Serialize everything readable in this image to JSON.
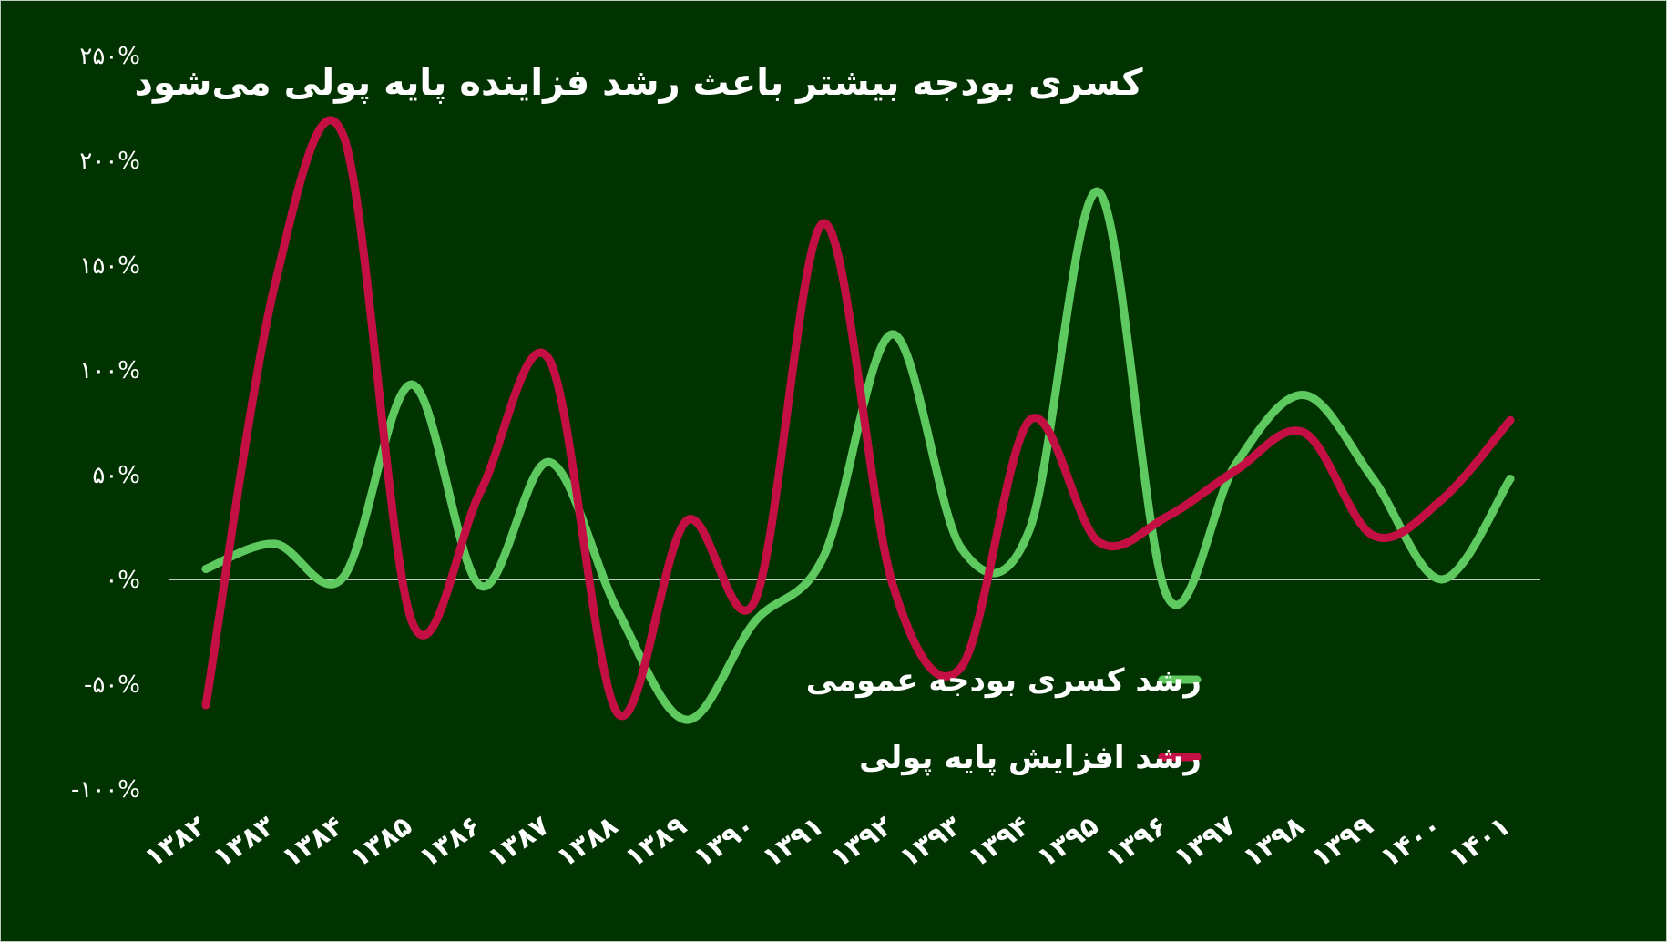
{
  "chart_data": {
    "type": "line",
    "title": "کسری بودجه بیشتر باعث رشد فزاینده پایه پولی می‌شود",
    "categories": [
      "۱۳۸۲",
      "۱۳۸۳",
      "۱۳۸۴",
      "۱۳۸۵",
      "۱۳۸۶",
      "۱۳۸۷",
      "۱۳۸۸",
      "۱۳۸۹",
      "۱۳۹۰",
      "۱۳۹۱",
      "۱۳۹۲",
      "۱۳۹۳",
      "۱۳۹۴",
      "۱۳۹۵",
      "۱۳۹۶",
      "۱۳۹۷",
      "۱۳۹۸",
      "۱۳۹۹",
      "۱۴۰۰",
      "۱۴۰۱"
    ],
    "y_ticks": [
      "۲۵۰%",
      "۲۰۰%",
      "۱۵۰%",
      "۱۰۰%",
      "۵۰%",
      "۰%",
      "-۵۰%",
      "-۱۰۰%"
    ],
    "ylim": [
      -100,
      250
    ],
    "series": [
      {
        "name": "رشد کسری بودجه عمومی",
        "color": "#5ec95e",
        "values": [
          5,
          17,
          1,
          93,
          -3,
          56,
          -15,
          -67,
          -20,
          11,
          117,
          15,
          24,
          185,
          -8,
          55,
          88,
          48,
          0,
          48
        ]
      },
      {
        "name": "رشد افزایش پایه پولی",
        "color": "#c40f45",
        "values": [
          -60,
          140,
          212,
          -20,
          42,
          105,
          -64,
          28,
          -10,
          170,
          -2,
          -42,
          76,
          18,
          30,
          52,
          70,
          21,
          38,
          76
        ]
      }
    ],
    "legend_position": "right",
    "zero_line_color": "#ffffff",
    "background": "#003300"
  }
}
